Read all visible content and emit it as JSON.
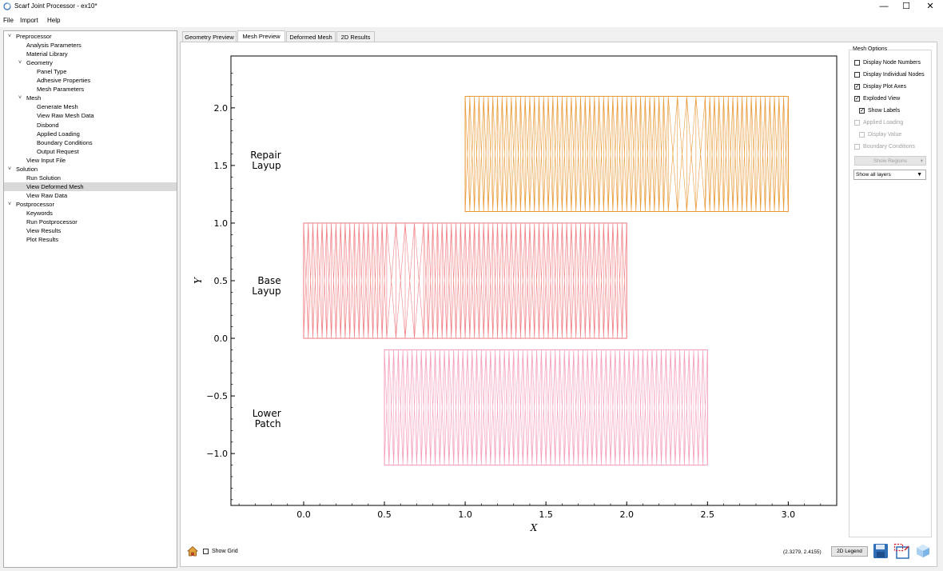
{
  "window": {
    "title": "Scarf Joint Processor - ex10*",
    "controls": [
      "—",
      "☐",
      "✕"
    ]
  },
  "menu": [
    "File",
    "Import",
    "Help"
  ],
  "tree": [
    {
      "label": "Preprocessor",
      "level": 0,
      "expandable": true
    },
    {
      "label": "Analysis Parameters",
      "level": 1
    },
    {
      "label": "Material Library",
      "level": 1
    },
    {
      "label": "Geometry",
      "level": 1,
      "expandable": true
    },
    {
      "label": "Panel Type",
      "level": 2
    },
    {
      "label": "Adhesive Properties",
      "level": 2
    },
    {
      "label": "Mesh Parameters",
      "level": 2
    },
    {
      "label": "Mesh",
      "level": 1,
      "expandable": true
    },
    {
      "label": "Generate Mesh",
      "level": 2
    },
    {
      "label": "View Raw Mesh Data",
      "level": 2
    },
    {
      "label": "Disbond",
      "level": 2
    },
    {
      "label": "Applied Loading",
      "level": 2
    },
    {
      "label": "Boundary Conditions",
      "level": 2
    },
    {
      "label": "Output Request",
      "level": 2
    },
    {
      "label": "View Input File",
      "level": 1
    },
    {
      "label": "Solution",
      "level": 0,
      "expandable": true
    },
    {
      "label": "Run Solution",
      "level": 1
    },
    {
      "label": "View Deformed Mesh",
      "level": 1,
      "selected": true
    },
    {
      "label": "View Raw Data",
      "level": 1
    },
    {
      "label": "Postprocessor",
      "level": 0,
      "expandable": true
    },
    {
      "label": "Keywords",
      "level": 1
    },
    {
      "label": "Run Postprocessor",
      "level": 1
    },
    {
      "label": "View Results",
      "level": 1
    },
    {
      "label": "Plot Results",
      "level": 1
    }
  ],
  "tabs": [
    {
      "label": "Geometry Preview",
      "active": false
    },
    {
      "label": "Mesh Preview",
      "active": true
    },
    {
      "label": "Deformed Mesh",
      "active": false
    },
    {
      "label": "2D Results",
      "active": false
    }
  ],
  "mesh_options": {
    "title": "Mesh Options",
    "items": [
      {
        "label": "Display Node Numbers",
        "checked": false,
        "enabled": true,
        "indent": false
      },
      {
        "label": "Display Individual Nodes",
        "checked": false,
        "enabled": true,
        "indent": false
      },
      {
        "label": "Display Plot Axes",
        "checked": true,
        "enabled": true,
        "indent": false
      },
      {
        "label": "Exploded View",
        "checked": true,
        "enabled": true,
        "indent": false
      },
      {
        "label": "Show Labels",
        "checked": true,
        "enabled": true,
        "indent": true
      },
      {
        "label": "Applied Loading",
        "checked": false,
        "enabled": false,
        "indent": false
      },
      {
        "label": "Display Value",
        "checked": false,
        "enabled": false,
        "indent": true
      },
      {
        "label": "Boundary Conditions",
        "checked": false,
        "enabled": false,
        "indent": false
      }
    ],
    "show_regions_label": "Show Regions",
    "layers_value": "Show all layers"
  },
  "bottom": {
    "show_grid_label": "Show Grid",
    "show_grid_checked": false,
    "coords": "(2.3279, 2.4155)",
    "legend_button": "2D Legend"
  },
  "chart_data": {
    "type": "mesh",
    "xlabel": "X",
    "ylabel": "Y",
    "xlim": [
      -0.45,
      3.3
    ],
    "ylim": [
      -1.45,
      2.45
    ],
    "xticks": [
      "0.0",
      "0.5",
      "1.0",
      "1.5",
      "2.0",
      "2.5",
      "3.0"
    ],
    "xtick_values": [
      0.0,
      0.5,
      1.0,
      1.5,
      2.0,
      2.5,
      3.0
    ],
    "yticks": [
      "−1.0",
      "−0.5",
      "0.0",
      "0.5",
      "1.0",
      "1.5",
      "2.0"
    ],
    "ytick_values": [
      -1.0,
      -0.5,
      0.0,
      0.5,
      1.0,
      1.5,
      2.0
    ],
    "regions": [
      {
        "label": [
          "Repair",
          "Layup"
        ],
        "label_at": [
          -0.14,
          1.52
        ],
        "x_range": [
          1.0,
          3.0
        ],
        "y_range": [
          1.1,
          2.1
        ],
        "color": "#e8962e",
        "elements": 70,
        "sparse_range": [
          2.27,
          2.5
        ]
      },
      {
        "label": [
          "Base",
          "Layup"
        ],
        "label_at": [
          -0.14,
          0.43
        ],
        "x_range": [
          0.0,
          2.0
        ],
        "y_range": [
          0.0,
          1.0
        ],
        "color": "#f07a80",
        "elements": 70,
        "sparse_range": [
          0.5,
          0.74
        ]
      },
      {
        "label": [
          "Lower",
          "Patch"
        ],
        "label_at": [
          -0.14,
          -0.72
        ],
        "x_range": [
          0.5,
          2.5
        ],
        "y_range": [
          -1.1,
          -0.1
        ],
        "color": "#f49ab6",
        "elements": 70,
        "sparse_range": null
      }
    ]
  }
}
